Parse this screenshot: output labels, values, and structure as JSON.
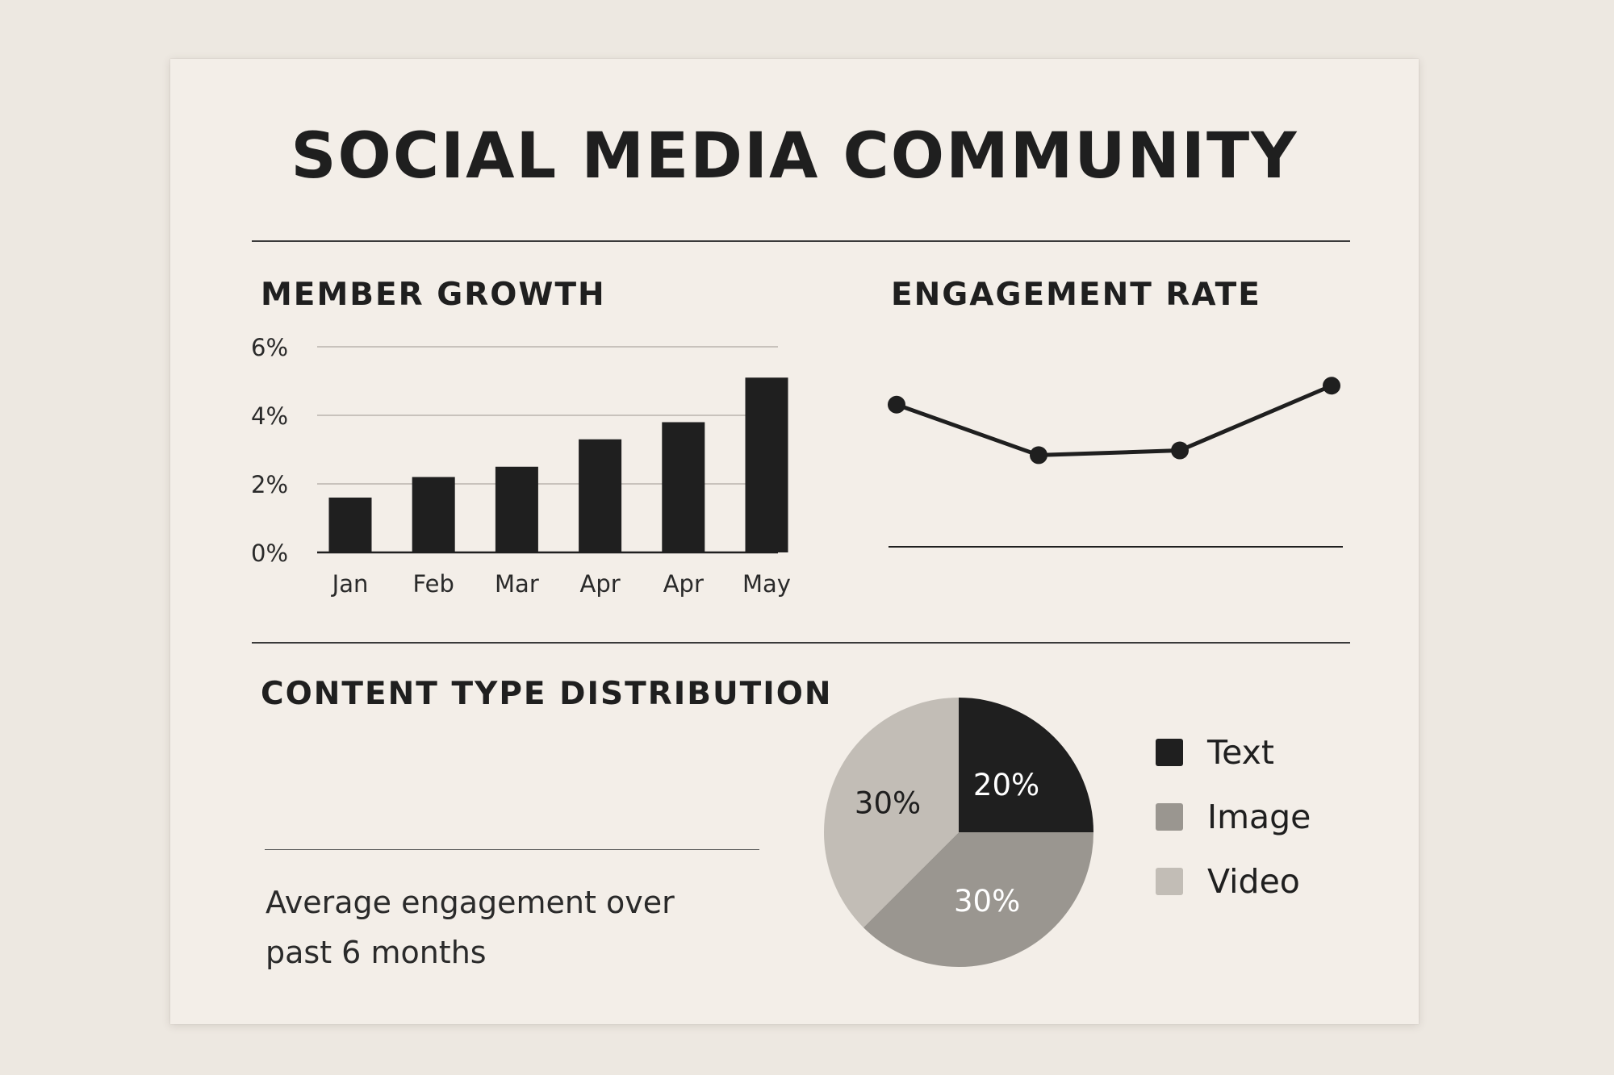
{
  "title": "SOCIAL MEDIA COMMUNITY",
  "sections": {
    "member_growth": "MEMBER GROWTH",
    "engagement_rate": "ENGAGEMENT RATE",
    "content_type": "CONTENT TYPE DISTRIBUTION"
  },
  "note": "Average engagement over past 6 months",
  "chart_data": [
    {
      "type": "bar",
      "title": "MEMBER GROWTH",
      "categories": [
        "Jan",
        "Feb",
        "Mar",
        "Apr",
        "Apr",
        "May"
      ],
      "values": [
        1.6,
        2.2,
        2.5,
        3.3,
        3.8,
        5.1
      ],
      "yticks": [
        "0%",
        "2%",
        "4%",
        "6%"
      ],
      "ylim": [
        0,
        6
      ],
      "grid": true,
      "color": "#1f1f1f"
    },
    {
      "type": "line",
      "title": "ENGAGEMENT RATE",
      "values": [
        4.5,
        2.9,
        3.05,
        5.1
      ],
      "ylim": [
        0,
        6
      ],
      "grid": false,
      "color": "#1f1f1f"
    },
    {
      "type": "pie",
      "title": "CONTENT TYPE DISTRIBUTION",
      "slices": [
        {
          "label": "Text",
          "value": 20,
          "value_label": "20%",
          "color": "#1f1f1f",
          "label_color": "#ffffff"
        },
        {
          "label": "Image",
          "value": 30,
          "value_label": "30%",
          "color": "#9a9690",
          "label_color": "#ffffff"
        },
        {
          "label": "Video",
          "value": 30,
          "value_label": "30%",
          "color": "#c2bdb6",
          "label_color": "#1f1f1f"
        }
      ],
      "legend": "right"
    }
  ]
}
